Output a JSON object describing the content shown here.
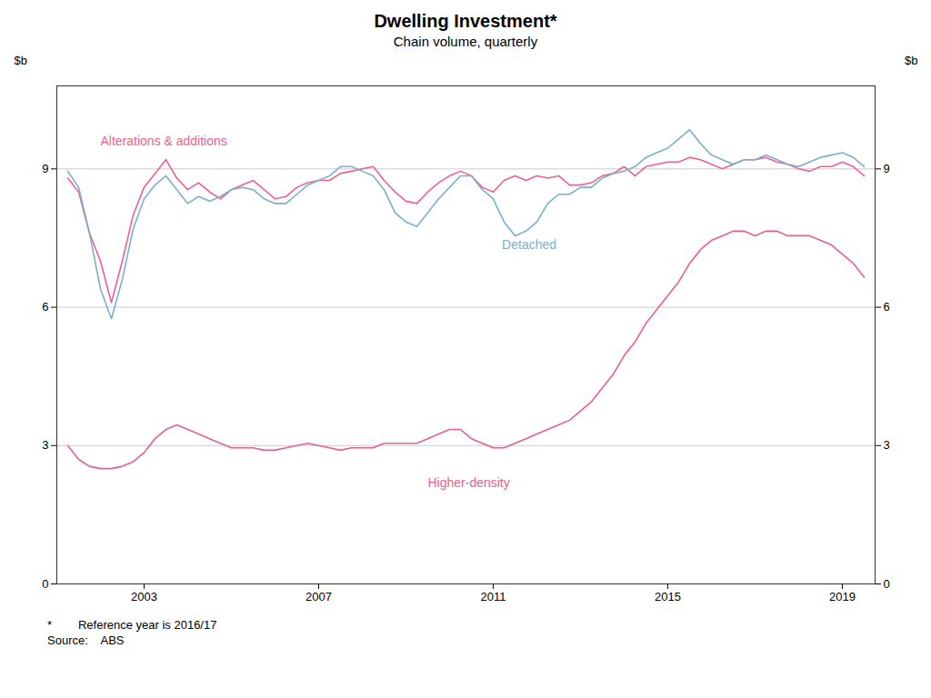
{
  "chart_data": {
    "type": "line",
    "title": "Dwelling Investment*",
    "subtitle": "Chain volume, quarterly",
    "ylabel": "$b",
    "y2label": "$b",
    "footnote": "*        Reference year is 2016/17",
    "source": "Source:    ABS",
    "xlim": [
      2001.0,
      2019.75
    ],
    "xticks": [
      2003,
      2007,
      2011,
      2015,
      2019
    ],
    "ylim": [
      0,
      10.8
    ],
    "yticks": [
      0,
      3,
      6,
      9
    ],
    "y2lim": [
      0,
      10.8
    ],
    "y2ticks": [
      0,
      3,
      6,
      9
    ],
    "grid": true,
    "x": [
      2001.25,
      2001.5,
      2001.75,
      2002.0,
      2002.25,
      2002.5,
      2002.75,
      2003.0,
      2003.25,
      2003.5,
      2003.75,
      2004.0,
      2004.25,
      2004.5,
      2004.75,
      2005.0,
      2005.25,
      2005.5,
      2005.75,
      2006.0,
      2006.25,
      2006.5,
      2006.75,
      2007.0,
      2007.25,
      2007.5,
      2007.75,
      2008.0,
      2008.25,
      2008.5,
      2008.75,
      2009.0,
      2009.25,
      2009.5,
      2009.75,
      2010.0,
      2010.25,
      2010.5,
      2010.75,
      2011.0,
      2011.25,
      2011.5,
      2011.75,
      2012.0,
      2012.25,
      2012.5,
      2012.75,
      2013.0,
      2013.25,
      2013.5,
      2013.75,
      2014.0,
      2014.25,
      2014.5,
      2014.75,
      2015.0,
      2015.25,
      2015.5,
      2015.75,
      2016.0,
      2016.25,
      2016.5,
      2016.75,
      2017.0,
      2017.25,
      2017.5,
      2017.75,
      2018.0,
      2018.25,
      2018.5,
      2018.75,
      2019.0,
      2019.25,
      2019.5
    ],
    "series": [
      {
        "name": "Alterations & additions",
        "color": "#f06090",
        "label_x": 2002.0,
        "label_y": 9.5,
        "values": [
          8.8,
          8.5,
          7.6,
          7.0,
          6.1,
          7.0,
          8.0,
          8.6,
          8.9,
          9.2,
          8.8,
          8.55,
          8.7,
          8.5,
          8.35,
          8.55,
          8.65,
          8.75,
          8.55,
          8.35,
          8.4,
          8.6,
          8.7,
          8.75,
          8.75,
          8.9,
          8.95,
          9.0,
          9.05,
          8.75,
          8.5,
          8.3,
          8.25,
          8.5,
          8.7,
          8.85,
          8.95,
          8.85,
          8.6,
          8.5,
          8.75,
          8.85,
          8.75,
          8.85,
          8.8,
          8.85,
          8.65,
          8.65,
          8.7,
          8.85,
          8.9,
          9.05,
          8.85,
          9.05,
          9.1,
          9.15,
          9.15,
          9.25,
          9.2,
          9.1,
          9.0,
          9.1,
          9.2,
          9.2,
          9.25,
          9.15,
          9.1,
          9.0,
          8.95,
          9.05,
          9.05,
          9.15,
          9.05,
          8.85
        ]
      },
      {
        "name": "Detached",
        "color": "#7ab0cc",
        "label_x": 2011.2,
        "label_y": 7.45,
        "values": [
          8.95,
          8.6,
          7.6,
          6.4,
          5.75,
          6.6,
          7.7,
          8.35,
          8.65,
          8.85,
          8.55,
          8.25,
          8.4,
          8.3,
          8.4,
          8.55,
          8.6,
          8.55,
          8.35,
          8.25,
          8.25,
          8.45,
          8.65,
          8.75,
          8.85,
          9.05,
          9.05,
          8.95,
          8.85,
          8.55,
          8.05,
          7.85,
          7.75,
          8.05,
          8.35,
          8.6,
          8.85,
          8.85,
          8.55,
          8.35,
          7.85,
          7.55,
          7.65,
          7.85,
          8.25,
          8.45,
          8.45,
          8.6,
          8.6,
          8.8,
          8.9,
          8.95,
          9.05,
          9.25,
          9.35,
          9.45,
          9.65,
          9.85,
          9.55,
          9.3,
          9.2,
          9.1,
          9.2,
          9.2,
          9.3,
          9.2,
          9.1,
          9.05,
          9.15,
          9.25,
          9.3,
          9.35,
          9.25,
          9.05
        ]
      },
      {
        "name": "Higher-density",
        "color": "#e8608a",
        "label_x": 2009.5,
        "label_y": 2.3,
        "values": [
          3.0,
          2.7,
          2.55,
          2.5,
          2.5,
          2.55,
          2.65,
          2.85,
          3.15,
          3.35,
          3.45,
          3.35,
          3.25,
          3.15,
          3.05,
          2.95,
          2.95,
          2.95,
          2.9,
          2.9,
          2.95,
          3.0,
          3.05,
          3.0,
          2.95,
          2.9,
          2.95,
          2.95,
          2.95,
          3.05,
          3.05,
          3.05,
          3.05,
          3.15,
          3.25,
          3.35,
          3.35,
          3.15,
          3.05,
          2.95,
          2.95,
          3.05,
          3.15,
          3.25,
          3.35,
          3.45,
          3.55,
          3.75,
          3.95,
          4.25,
          4.55,
          4.95,
          5.25,
          5.65,
          5.95,
          6.25,
          6.55,
          6.95,
          7.25,
          7.45,
          7.55,
          7.65,
          7.65,
          7.55,
          7.65,
          7.65,
          7.55,
          7.55,
          7.55,
          7.45,
          7.35,
          7.15,
          6.95,
          6.65
        ]
      }
    ]
  }
}
